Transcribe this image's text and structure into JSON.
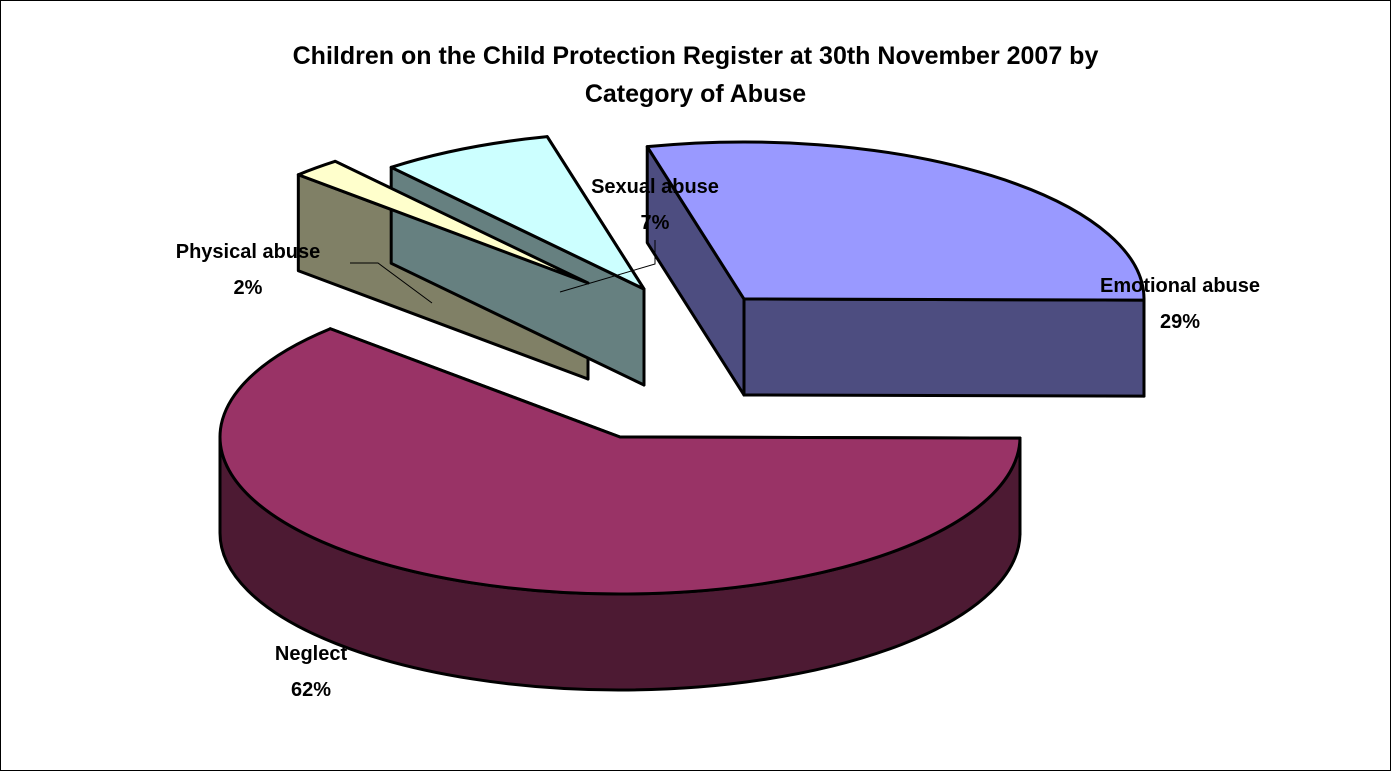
{
  "chart_data": {
    "type": "pie",
    "title_line1": "Children on the Child Protection Register at 30th November 2007 by",
    "title_line2": "Category of Abuse",
    "slices": [
      {
        "label": "Emotional abuse",
        "value": 29,
        "value_label": "29%",
        "color": "#9999FF",
        "side_color": "#4D4D80"
      },
      {
        "label": "Neglect",
        "value": 62,
        "value_label": "62%",
        "color": "#993366",
        "side_color": "#4D1A33"
      },
      {
        "label": "Physical abuse",
        "value": 2,
        "value_label": "2%",
        "color": "#FFFFCC",
        "side_color": "#808066"
      },
      {
        "label": "Sexual abuse",
        "value": 7,
        "value_label": "7%",
        "color": "#CCFFFF",
        "side_color": "#668080"
      }
    ]
  }
}
